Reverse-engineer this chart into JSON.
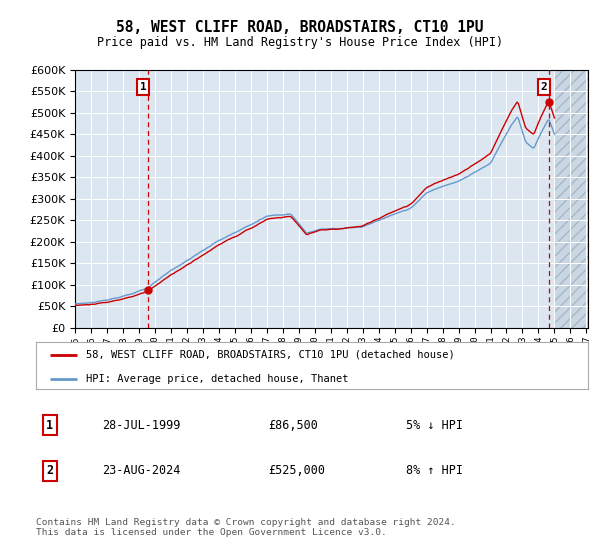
{
  "title1": "58, WEST CLIFF ROAD, BROADSTAIRS, CT10 1PU",
  "title2": "Price paid vs. HM Land Registry's House Price Index (HPI)",
  "ytick_values": [
    0,
    50000,
    100000,
    150000,
    200000,
    250000,
    300000,
    350000,
    400000,
    450000,
    500000,
    550000,
    600000
  ],
  "xmin": 1995,
  "xmax": 2027,
  "ymin": 0,
  "ymax": 600000,
  "sale1_year": 1999.57,
  "sale1_price": 86500,
  "sale1_label": "1",
  "sale1_date": "28-JUL-1999",
  "sale1_hpi_pct": "5% ↓ HPI",
  "sale2_year": 2024.64,
  "sale2_price": 525000,
  "sale2_label": "2",
  "sale2_date": "23-AUG-2024",
  "sale2_hpi_pct": "8% ↑ HPI",
  "bg_color": "#dce6f1",
  "red_line_color": "#cc0000",
  "blue_line_color": "#6699cc",
  "sale_dot_color": "#cc0000",
  "vline_color": "#cc0000",
  "label_box_color": "#cc0000",
  "future_start": 2025.0,
  "legend1_text": "58, WEST CLIFF ROAD, BROADSTAIRS, CT10 1PU (detached house)",
  "legend2_text": "HPI: Average price, detached house, Thanet",
  "table_row1": [
    "1",
    "28-JUL-1999",
    "£86,500",
    "5% ↓ HPI"
  ],
  "table_row2": [
    "2",
    "23-AUG-2024",
    "£525,000",
    "8% ↑ HPI"
  ],
  "footer": "Contains HM Land Registry data © Crown copyright and database right 2024.\nThis data is licensed under the Open Government Licence v3.0.",
  "footer_color": "#555555"
}
